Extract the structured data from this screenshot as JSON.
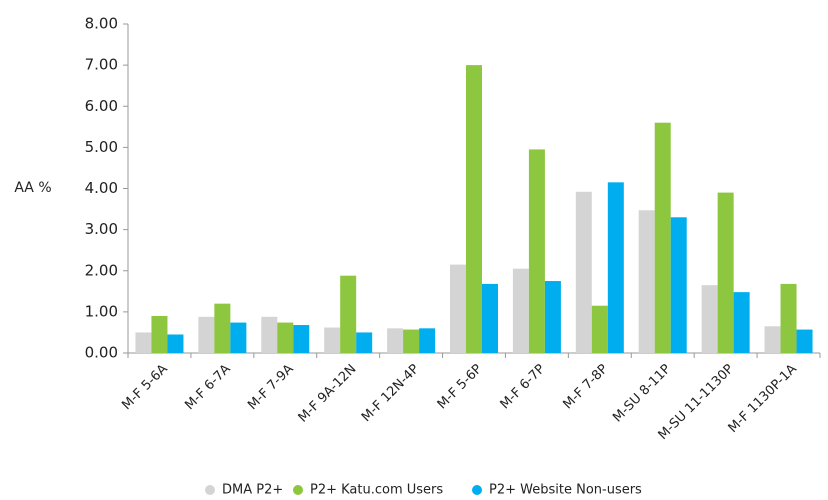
{
  "chart_data": {
    "type": "bar",
    "y_label": "AA %",
    "categories": [
      "M-F 5-6A",
      "M-F 6-7A",
      "M-F 7-9A",
      "M-F 9A-12N",
      "M-F 12N-4P",
      "M-F 5-6P",
      "M-F 6-7P",
      "M-F 7-8P",
      "M-SU 8-11P",
      "M-SU 11-1130P",
      "M-F 1130P-1A"
    ],
    "series": [
      {
        "name": "DMA P2+",
        "color": "#d4d4d4",
        "values": [
          0.5,
          0.88,
          0.88,
          0.62,
          0.6,
          2.15,
          2.05,
          3.92,
          3.47,
          1.65,
          0.65
        ]
      },
      {
        "name": "P2+ Katu.com Users",
        "color": "#8dc63f",
        "values": [
          0.9,
          1.2,
          0.74,
          1.88,
          0.57,
          7.0,
          4.95,
          1.15,
          5.6,
          3.9,
          1.68
        ]
      },
      {
        "name": "P2+ Website Non-users",
        "color": "#00aeef",
        "values": [
          0.45,
          0.74,
          0.68,
          0.5,
          0.6,
          1.68,
          1.75,
          4.15,
          3.3,
          1.48,
          0.57
        ]
      }
    ],
    "ylim": [
      0,
      8
    ],
    "yticks": [
      {
        "value": 0,
        "label": "0.00"
      },
      {
        "value": 1,
        "label": "1.00"
      },
      {
        "value": 2,
        "label": "2.00"
      },
      {
        "value": 3,
        "label": "3.00"
      },
      {
        "value": 4,
        "label": "4.00"
      },
      {
        "value": 5,
        "label": "5.00"
      },
      {
        "value": 6,
        "label": "6.00"
      },
      {
        "value": 7,
        "label": "7.00"
      },
      {
        "value": 8,
        "label": "8.00"
      }
    ],
    "grid": false,
    "legend": "bottom"
  }
}
